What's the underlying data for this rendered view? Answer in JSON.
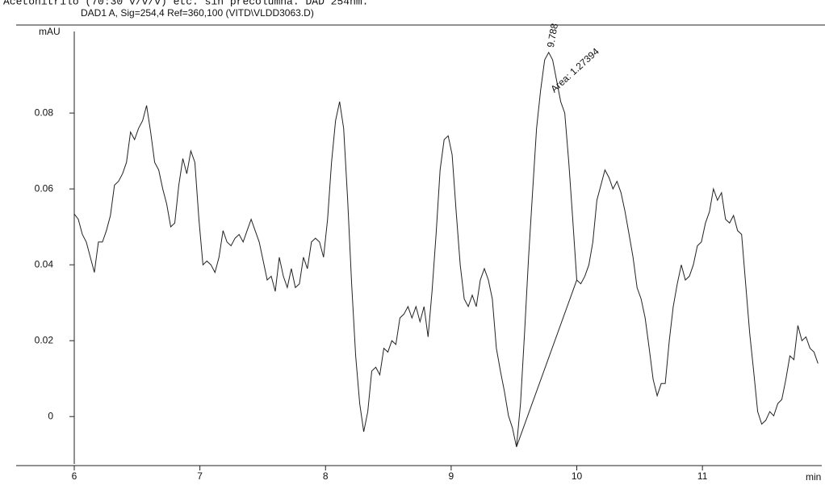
{
  "chart_data": {
    "type": "line",
    "header": "Acetonitrilo (70:30 v/v/v) etc. sin precolumna. DAD 254nm.",
    "title": "DAD1 A, Sig=254,4 Ref=360,100 (VITD\\VLDD3063.D)",
    "y_label": "mAU",
    "x_label": "min",
    "peak_label": "9.788",
    "area_label": "Area: 1.27394",
    "xlim": [
      6,
      11.95
    ],
    "ylim": [
      -0.0125,
      0.1015
    ],
    "xticks": [
      6,
      7,
      8,
      9,
      10,
      11
    ],
    "yticks": [
      0,
      0.02,
      0.04,
      0.06,
      0.08
    ],
    "x": [
      6,
      6.032,
      6.064,
      6.096,
      6.128,
      6.16,
      6.192,
      6.224,
      6.256,
      6.288,
      6.32,
      6.352,
      6.384,
      6.416,
      6.448,
      6.48,
      6.512,
      6.544,
      6.576,
      6.608,
      6.64,
      6.672,
      6.704,
      6.736,
      6.768,
      6.8,
      6.832,
      6.864,
      6.896,
      6.928,
      6.96,
      6.992,
      7.024,
      7.056,
      7.088,
      7.12,
      7.152,
      7.184,
      7.216,
      7.248,
      7.28,
      7.312,
      7.344,
      7.376,
      7.408,
      7.44,
      7.472,
      7.504,
      7.536,
      7.568,
      7.6,
      7.632,
      7.664,
      7.696,
      7.728,
      7.76,
      7.792,
      7.824,
      7.856,
      7.888,
      7.92,
      7.952,
      7.984,
      8.016,
      8.048,
      8.08,
      8.112,
      8.144,
      8.176,
      8.208,
      8.24,
      8.272,
      8.304,
      8.336,
      8.368,
      8.4,
      8.432,
      8.464,
      8.496,
      8.528,
      8.56,
      8.592,
      8.624,
      8.656,
      8.688,
      8.72,
      8.752,
      8.784,
      8.816,
      8.848,
      8.88,
      8.912,
      8.944,
      8.976,
      9.008,
      9.04,
      9.072,
      9.104,
      9.136,
      9.168,
      9.2,
      9.232,
      9.264,
      9.296,
      9.328,
      9.36,
      9.392,
      9.424,
      9.456,
      9.488,
      9.52,
      9.552,
      9.584,
      9.616,
      9.648,
      9.68,
      9.712,
      9.744,
      9.776,
      9.808,
      9.84,
      9.872,
      9.904,
      9.936,
      9.968,
      10,
      10.032,
      10.064,
      10.096,
      10.128,
      10.16,
      10.192,
      10.224,
      10.256,
      10.288,
      10.32,
      10.352,
      10.384,
      10.416,
      10.448,
      10.48,
      10.512,
      10.544,
      10.576,
      10.608,
      10.64,
      10.672,
      10.704,
      10.736,
      10.768,
      10.8,
      10.832,
      10.864,
      10.896,
      10.928,
      10.96,
      10.992,
      11.024,
      11.056,
      11.088,
      11.12,
      11.152,
      11.184,
      11.216,
      11.248,
      11.28,
      11.312,
      11.344,
      11.376,
      11.408,
      11.44,
      11.472,
      11.504,
      11.536,
      11.568,
      11.6,
      11.632,
      11.664,
      11.696,
      11.728,
      11.76,
      11.792,
      11.824,
      11.856,
      11.888,
      11.92
    ],
    "series": [
      {
        "color": "#222222",
        "values": [
          0.0534,
          0.052,
          0.048,
          0.046,
          0.042,
          0.038,
          0.046,
          0.046,
          0.049,
          0.053,
          0.061,
          0.062,
          0.064,
          0.067,
          0.075,
          0.073,
          0.076,
          0.078,
          0.082,
          0.075,
          0.067,
          0.065,
          0.06,
          0.056,
          0.05,
          0.051,
          0.061,
          0.068,
          0.064,
          0.07,
          0.067,
          0.052,
          0.04,
          0.041,
          0.04,
          0.038,
          0.042,
          0.049,
          0.046,
          0.045,
          0.047,
          0.048,
          0.046,
          0.049,
          0.052,
          0.049,
          0.046,
          0.041,
          0.036,
          0.037,
          0.033,
          0.042,
          0.037,
          0.034,
          0.039,
          0.034,
          0.035,
          0.042,
          0.039,
          0.046,
          0.047,
          0.046,
          0.042,
          0.052,
          0.067,
          0.078,
          0.083,
          0.076,
          0.057,
          0.035,
          0.016,
          0.0034,
          -0.004,
          0.0013,
          0.012,
          0.013,
          0.011,
          0.018,
          0.017,
          0.02,
          0.019,
          0.026,
          0.027,
          0.029,
          0.026,
          0.029,
          0.025,
          0.029,
          0.021,
          0.033,
          0.048,
          0.065,
          0.073,
          0.074,
          0.069,
          0.054,
          0.04,
          0.031,
          0.029,
          0.032,
          0.029,
          0.036,
          0.039,
          0.036,
          0.031,
          0.018,
          0.012,
          0.0066,
          0.0002,
          -0.003,
          -0.008,
          0.0034,
          0.022,
          0.042,
          0.059,
          0.076,
          0.086,
          0.094,
          0.096,
          0.094,
          0.0885,
          0.083,
          0.08,
          0.067,
          0.052,
          0.036,
          0.035,
          0.037,
          0.04,
          0.046,
          0.057,
          0.061,
          0.065,
          0.063,
          0.06,
          0.062,
          0.059,
          0.054,
          0.048,
          0.042,
          0.034,
          0.031,
          0.026,
          0.018,
          0.0098,
          0.0055,
          0.0087,
          0.0087,
          0.02,
          0.029,
          0.035,
          0.04,
          0.036,
          0.037,
          0.04,
          0.045,
          0.046,
          0.051,
          0.054,
          0.06,
          0.057,
          0.059,
          0.052,
          0.051,
          0.053,
          0.049,
          0.048,
          0.035,
          0.022,
          0.012,
          0.0013,
          -0.002,
          -0.001,
          0.0013,
          0.0002,
          0.0034,
          0.0045,
          0.0098,
          0.016,
          0.015,
          0.024,
          0.02,
          0.021,
          0.018,
          0.017,
          0.014
        ]
      }
    ],
    "baseline": {
      "x": [
        9.52,
        10.0
      ],
      "values": [
        -0.008,
        0.036
      ]
    }
  }
}
